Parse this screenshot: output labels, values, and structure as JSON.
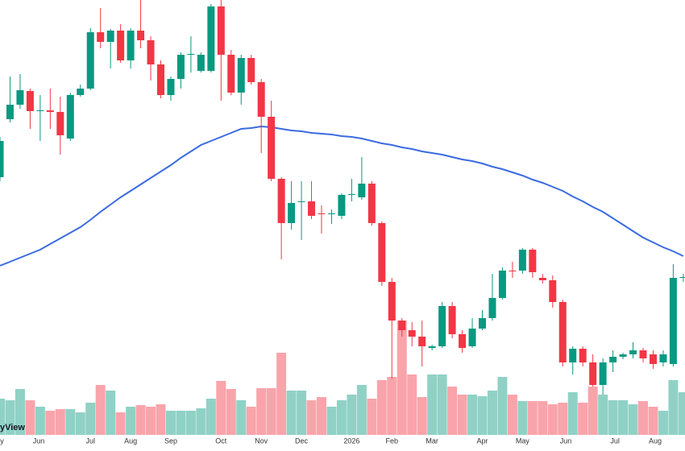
{
  "chart_data": {
    "type": "candlestick",
    "watermark": "yView",
    "xlim": [
      0,
      68.17
    ],
    "ylim": [
      0,
      540
    ],
    "xticks": [
      {
        "value": 0.2,
        "label": "y"
      },
      {
        "value": 3.85,
        "label": "Jun"
      },
      {
        "value": 9,
        "label": "Jul"
      },
      {
        "value": 13,
        "label": "Aug"
      },
      {
        "value": 17,
        "label": "Sep"
      },
      {
        "value": 22,
        "label": "Oct"
      },
      {
        "value": 26,
        "label": "Nov"
      },
      {
        "value": 30,
        "label": "Dec"
      },
      {
        "value": 35,
        "label": "2026"
      },
      {
        "value": 39,
        "label": "Feb"
      },
      {
        "value": 43,
        "label": "Mar"
      },
      {
        "value": 48,
        "label": "Apr"
      },
      {
        "value": 52,
        "label": "May"
      },
      {
        "value": 56.3,
        "label": "Jun"
      },
      {
        "value": 61.2,
        "label": "Jul"
      },
      {
        "value": 65.2,
        "label": "Aug"
      }
    ],
    "grid": true,
    "up_color": "#089981",
    "down_color": "#f23645",
    "ma_color": "#3b6be0",
    "open": [
      320,
      392,
      410,
      427,
      402,
      403,
      401,
      368,
      422,
      430,
      500,
      488,
      502,
      465,
      502,
      490,
      460,
      422,
      442,
      472,
      452,
      452,
      532,
      472,
      425,
      468,
      438,
      395,
      318,
      263,
      289,
      290,
      275,
      274,
      272,
      298,
      295,
      312,
      263,
      190,
      142,
      130,
      122,
      108,
      110,
      160,
      125,
      110,
      132,
      145,
      170,
      204,
      204,
      230,
      195,
      192,
      165,
      90,
      107,
      90,
      62,
      90,
      97,
      100,
      105,
      100,
      90,
      88,
      195
    ],
    "high": [
      370,
      445,
      448,
      430,
      422,
      430,
      420,
      425,
      435,
      505,
      530,
      504,
      510,
      505,
      540,
      495,
      465,
      445,
      475,
      495,
      475,
      535,
      540,
      478,
      472,
      472,
      442,
      415,
      320,
      315,
      315,
      315,
      285,
      280,
      300,
      318,
      345,
      315,
      265,
      195,
      145,
      140,
      142,
      112,
      165,
      165,
      130,
      145,
      155,
      200,
      208,
      215,
      232,
      232,
      200,
      198,
      168,
      110,
      110,
      100,
      95,
      105,
      102,
      115,
      108,
      105,
      105,
      212,
      200
    ],
    "low": [
      315,
      388,
      405,
      380,
      365,
      380,
      348,
      365,
      420,
      428,
      480,
      455,
      462,
      455,
      480,
      440,
      418,
      415,
      430,
      450,
      450,
      450,
      415,
      422,
      410,
      435,
      350,
      315,
      218,
      255,
      242,
      268,
      250,
      262,
      268,
      290,
      292,
      260,
      185,
      70,
      122,
      110,
      85,
      105,
      108,
      120,
      102,
      108,
      130,
      142,
      168,
      195,
      200,
      195,
      188,
      158,
      85,
      75,
      85,
      60,
      50,
      78,
      94,
      95,
      90,
      82,
      85,
      85,
      190
    ],
    "close": [
      365,
      410,
      428,
      402,
      403,
      401,
      372,
      422,
      430,
      500,
      488,
      502,
      465,
      502,
      490,
      460,
      422,
      442,
      472,
      473,
      472,
      532,
      472,
      425,
      468,
      438,
      395,
      318,
      263,
      288,
      290,
      272,
      274,
      275,
      298,
      299,
      312,
      263,
      190,
      142,
      130,
      122,
      110,
      110,
      160,
      125,
      108,
      132,
      145,
      170,
      204,
      203,
      230,
      202,
      192,
      165,
      90,
      107,
      90,
      62,
      90,
      97,
      100,
      105,
      95,
      88,
      100,
      195,
      196
    ],
    "volume": [
      45,
      43,
      57,
      43,
      35,
      30,
      32,
      32,
      28,
      40,
      62,
      55,
      28,
      35,
      37,
      35,
      38,
      30,
      30,
      30,
      33,
      45,
      67,
      57,
      43,
      35,
      58,
      58,
      102,
      55,
      55,
      43,
      47,
      35,
      43,
      50,
      62,
      45,
      68,
      72,
      142,
      75,
      47,
      75,
      75,
      60,
      50,
      50,
      48,
      55,
      72,
      50,
      42,
      42,
      42,
      38,
      40,
      53,
      40,
      60,
      50,
      43,
      43,
      38,
      42,
      35,
      30,
      68,
      53
    ],
    "ma": [
      210,
      215,
      220,
      225,
      230,
      237,
      244,
      251,
      258,
      267,
      277,
      286,
      295,
      303,
      311,
      319,
      327,
      335,
      344,
      352,
      360,
      365,
      370,
      375,
      380,
      381,
      383,
      382,
      380,
      378,
      377,
      375,
      374,
      373,
      371,
      370,
      368,
      365,
      362,
      360,
      357,
      355,
      352,
      350,
      348,
      345,
      342,
      340,
      337,
      333,
      330,
      326,
      322,
      317,
      313,
      308,
      303,
      296,
      290,
      283,
      277,
      269,
      261,
      253,
      245,
      239,
      233,
      228,
      222
    ]
  }
}
